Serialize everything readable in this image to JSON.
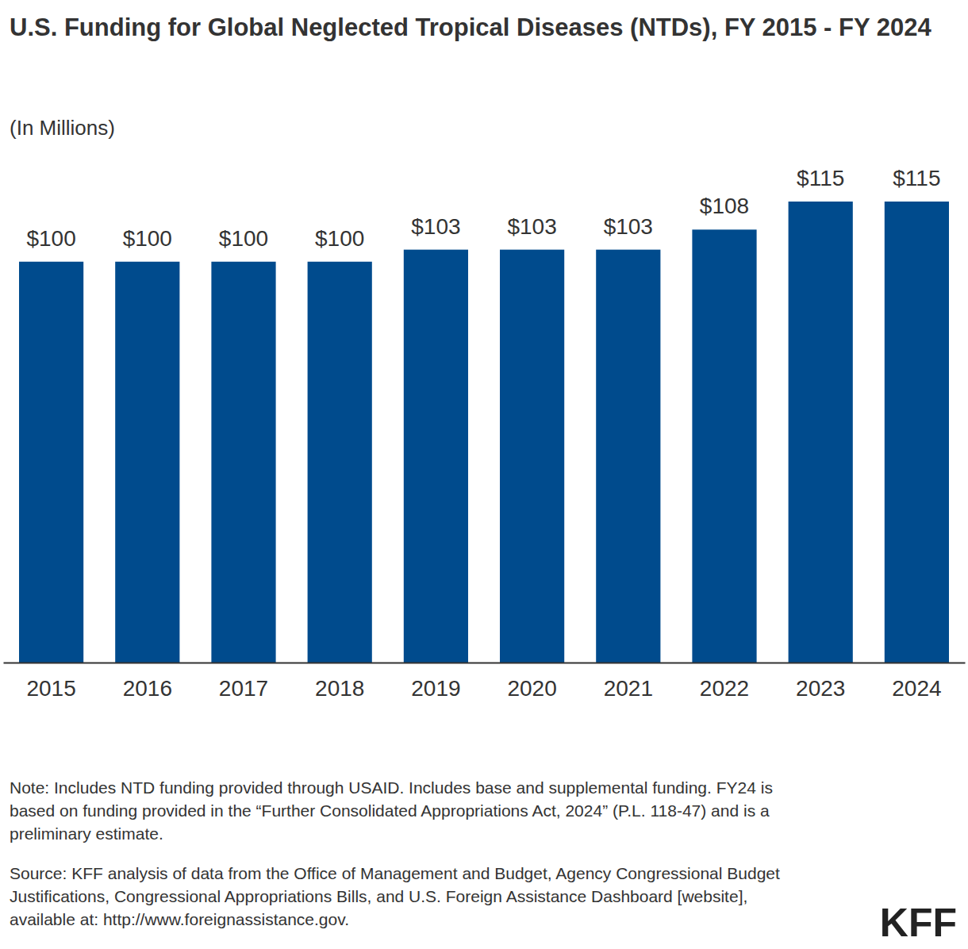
{
  "chart_data": {
    "type": "bar",
    "title": "U.S. Funding for Global Neglected Tropical Diseases (NTDs), FY 2015 - FY 2024",
    "subtitle": "(In Millions)",
    "categories": [
      "2015",
      "2016",
      "2017",
      "2018",
      "2019",
      "2020",
      "2021",
      "2022",
      "2023",
      "2024"
    ],
    "values": [
      100,
      100,
      100,
      100,
      103,
      103,
      103,
      108,
      115,
      115
    ],
    "value_labels": [
      "$100",
      "$100",
      "$100",
      "$100",
      "$103",
      "$103",
      "$103",
      "$108",
      "$115",
      "$115"
    ],
    "color": "#004b8d",
    "ylim": [
      0,
      115
    ],
    "data_labels": true,
    "tick_labels": "x",
    "note": "Note: Includes NTD funding provided through USAID. Includes base and supplemental funding. FY24 is based on funding provided in the “Further Consolidated Appropriations Act, 2024” (P.L. 118-47) and is a preliminary estimate.",
    "source": "Source: KFF analysis of data from the Office of Management and Budget, Agency Congressional Budget Justifications, Congressional Appropriations Bills, and U.S. Foreign Assistance Dashboard [website], available at: http://www.foreignassistance.gov.",
    "logo": "KFF"
  }
}
